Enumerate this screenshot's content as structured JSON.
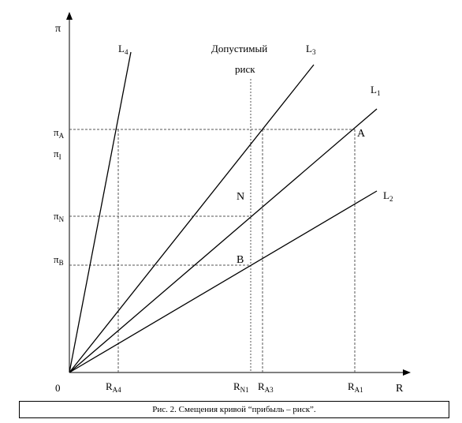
{
  "axes": {
    "y_label": "π",
    "x_label": "R",
    "origin_label": "0"
  },
  "lines": {
    "L4": {
      "base": "L",
      "sub": "4"
    },
    "L3": {
      "base": "L",
      "sub": "3"
    },
    "L1": {
      "base": "L",
      "sub": "1"
    },
    "L2": {
      "base": "L",
      "sub": "2"
    }
  },
  "y_ticks": {
    "pi_A": {
      "base": "π",
      "sub": "A"
    },
    "pi_I": {
      "base": "π",
      "sub": "I"
    },
    "pi_N": {
      "base": "π",
      "sub": "N"
    },
    "pi_B": {
      "base": "π",
      "sub": "B"
    }
  },
  "x_ticks": {
    "R_A4": {
      "base": "R",
      "sub": "A4"
    },
    "R_N1": {
      "base": "R",
      "sub": "N1"
    },
    "R_A3": {
      "base": "R",
      "sub": "A3"
    },
    "R_A1": {
      "base": "R",
      "sub": "A1"
    }
  },
  "points": {
    "A": "A",
    "N": "N",
    "B": "B"
  },
  "acceptable_risk": {
    "line1": "Допустимый",
    "line2": "риск"
  },
  "caption": "Рис. 2. Смещения кривой “прибыль – риск”."
}
